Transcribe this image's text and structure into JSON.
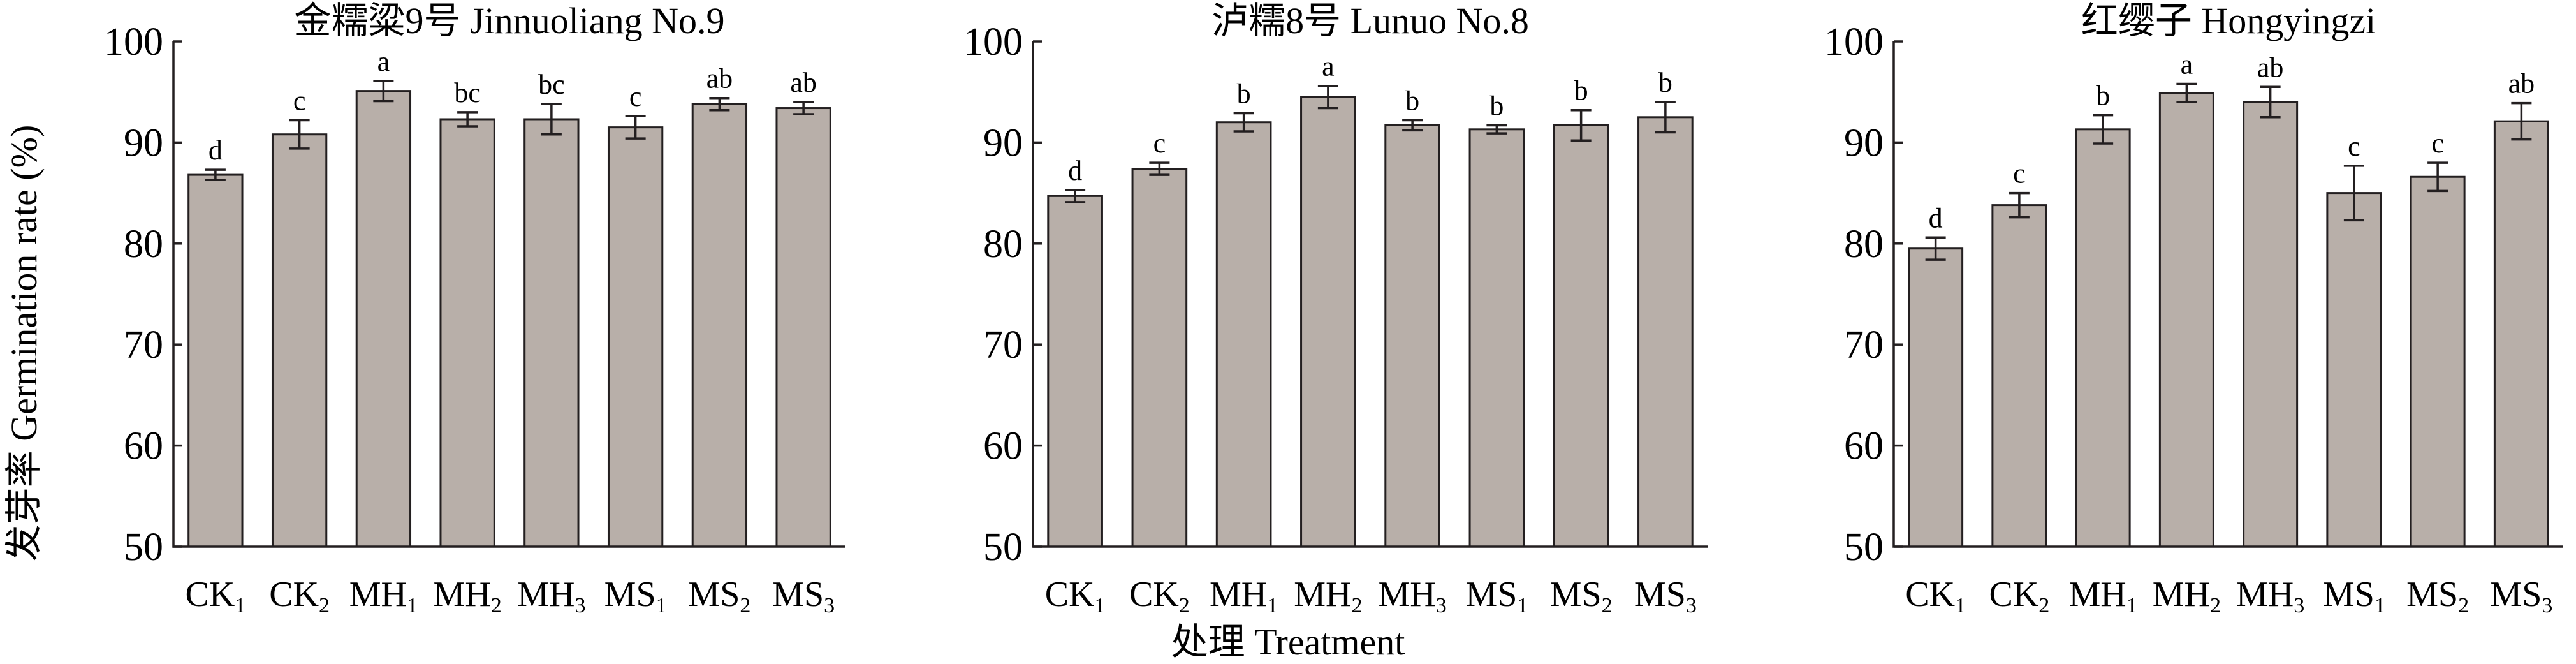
{
  "y_axis_label": "发芽率 Germination rate (%)",
  "x_axis_label": "处理 Treatment",
  "colors": {
    "bar_fill": "#b8afa9",
    "stroke": "#231f20"
  },
  "chart_data": [
    {
      "type": "bar",
      "title": "金糯粱9号 Jinnuoliang No.9",
      "ylim": [
        50,
        100
      ],
      "yticks": [
        50,
        60,
        70,
        80,
        90,
        100
      ],
      "categories": [
        {
          "base": "CK",
          "sub": "1"
        },
        {
          "base": "CK",
          "sub": "2"
        },
        {
          "base": "MH",
          "sub": "1"
        },
        {
          "base": "MH",
          "sub": "2"
        },
        {
          "base": "MH",
          "sub": "3"
        },
        {
          "base": "MS",
          "sub": "1"
        },
        {
          "base": "MS",
          "sub": "2"
        },
        {
          "base": "MS",
          "sub": "3"
        }
      ],
      "values": [
        86.8,
        90.8,
        95.1,
        92.3,
        92.3,
        91.5,
        93.8,
        93.4
      ],
      "errors": [
        0.5,
        1.4,
        1.0,
        0.7,
        1.5,
        1.1,
        0.6,
        0.6
      ],
      "labels": [
        "d",
        "c",
        "a",
        "bc",
        "bc",
        "c",
        "ab",
        "ab"
      ]
    },
    {
      "type": "bar",
      "title": "泸糯8号 Lunuo No.8",
      "ylim": [
        50,
        100
      ],
      "yticks": [
        50,
        60,
        70,
        80,
        90,
        100
      ],
      "categories": [
        {
          "base": "CK",
          "sub": "1"
        },
        {
          "base": "CK",
          "sub": "2"
        },
        {
          "base": "MH",
          "sub": "1"
        },
        {
          "base": "MH",
          "sub": "2"
        },
        {
          "base": "MH",
          "sub": "3"
        },
        {
          "base": "MS",
          "sub": "1"
        },
        {
          "base": "MS",
          "sub": "2"
        },
        {
          "base": "MS",
          "sub": "3"
        }
      ],
      "values": [
        84.7,
        87.4,
        92.0,
        94.5,
        91.7,
        91.3,
        91.7,
        92.5
      ],
      "errors": [
        0.6,
        0.6,
        0.9,
        1.1,
        0.5,
        0.4,
        1.5,
        1.5
      ],
      "labels": [
        "d",
        "c",
        "b",
        "a",
        "b",
        "b",
        "b",
        "b"
      ]
    },
    {
      "type": "bar",
      "title": "红缨子 Hongyingzi",
      "ylim": [
        50,
        100
      ],
      "yticks": [
        50,
        60,
        70,
        80,
        90,
        100
      ],
      "categories": [
        {
          "base": "CK",
          "sub": "1"
        },
        {
          "base": "CK",
          "sub": "2"
        },
        {
          "base": "MH",
          "sub": "1"
        },
        {
          "base": "MH",
          "sub": "2"
        },
        {
          "base": "MH",
          "sub": "3"
        },
        {
          "base": "MS",
          "sub": "1"
        },
        {
          "base": "MS",
          "sub": "2"
        },
        {
          "base": "MS",
          "sub": "3"
        }
      ],
      "values": [
        79.5,
        83.8,
        91.3,
        94.9,
        94.0,
        85.0,
        86.6,
        92.1
      ],
      "errors": [
        1.1,
        1.2,
        1.4,
        0.9,
        1.5,
        2.7,
        1.4,
        1.8
      ],
      "labels": [
        "d",
        "c",
        "b",
        "a",
        "ab",
        "c",
        "c",
        "ab"
      ]
    }
  ]
}
